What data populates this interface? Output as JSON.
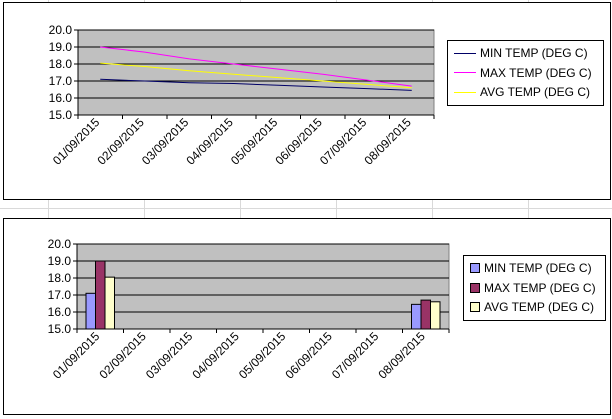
{
  "chart_data": [
    {
      "type": "line",
      "categories": [
        "01/09/2015",
        "02/09/2015",
        "03/09/2015",
        "04/09/2015",
        "05/09/2015",
        "06/09/2015",
        "07/09/2015",
        "08/09/2015"
      ],
      "series": [
        {
          "name": "MIN TEMP (DEG C)",
          "color": "#000066",
          "values": [
            17.1,
            17.0,
            16.9,
            16.85,
            16.75,
            16.65,
            16.55,
            16.45
          ]
        },
        {
          "name": "MAX TEMP (DEG C)",
          "color": "#ff00ff",
          "values": [
            19.0,
            18.7,
            18.3,
            18.0,
            17.7,
            17.4,
            17.05,
            16.7
          ]
        },
        {
          "name": "AVG TEMP (DEG C)",
          "color": "#ffff00",
          "values": [
            18.05,
            17.85,
            17.6,
            17.4,
            17.2,
            17.0,
            16.8,
            16.6
          ]
        }
      ],
      "y_ticks": [
        "15.0",
        "16.0",
        "17.0",
        "18.0",
        "19.0",
        "20.0"
      ],
      "ylim": [
        15,
        20
      ],
      "grid": true,
      "legend": "right"
    },
    {
      "type": "bar",
      "categories": [
        "01/09/2015",
        "02/09/2015",
        "03/09/2015",
        "04/09/2015",
        "05/09/2015",
        "06/09/2015",
        "07/09/2015",
        "08/09/2015"
      ],
      "series": [
        {
          "name": "MIN TEMP (DEG C)",
          "color": "#9999ff",
          "values": [
            17.1,
            null,
            null,
            null,
            null,
            null,
            null,
            16.45
          ]
        },
        {
          "name": "MAX TEMP (DEG C)",
          "color": "#993366",
          "values": [
            19.0,
            null,
            null,
            null,
            null,
            null,
            null,
            16.7
          ]
        },
        {
          "name": "AVG TEMP (DEG C)",
          "color": "#ffffcc",
          "values": [
            18.05,
            null,
            null,
            null,
            null,
            null,
            null,
            16.6
          ]
        }
      ],
      "y_ticks": [
        "15.0",
        "16.0",
        "17.0",
        "18.0",
        "19.0",
        "20.0"
      ],
      "ylim": [
        15,
        20
      ],
      "grid": true,
      "legend": "right"
    }
  ]
}
